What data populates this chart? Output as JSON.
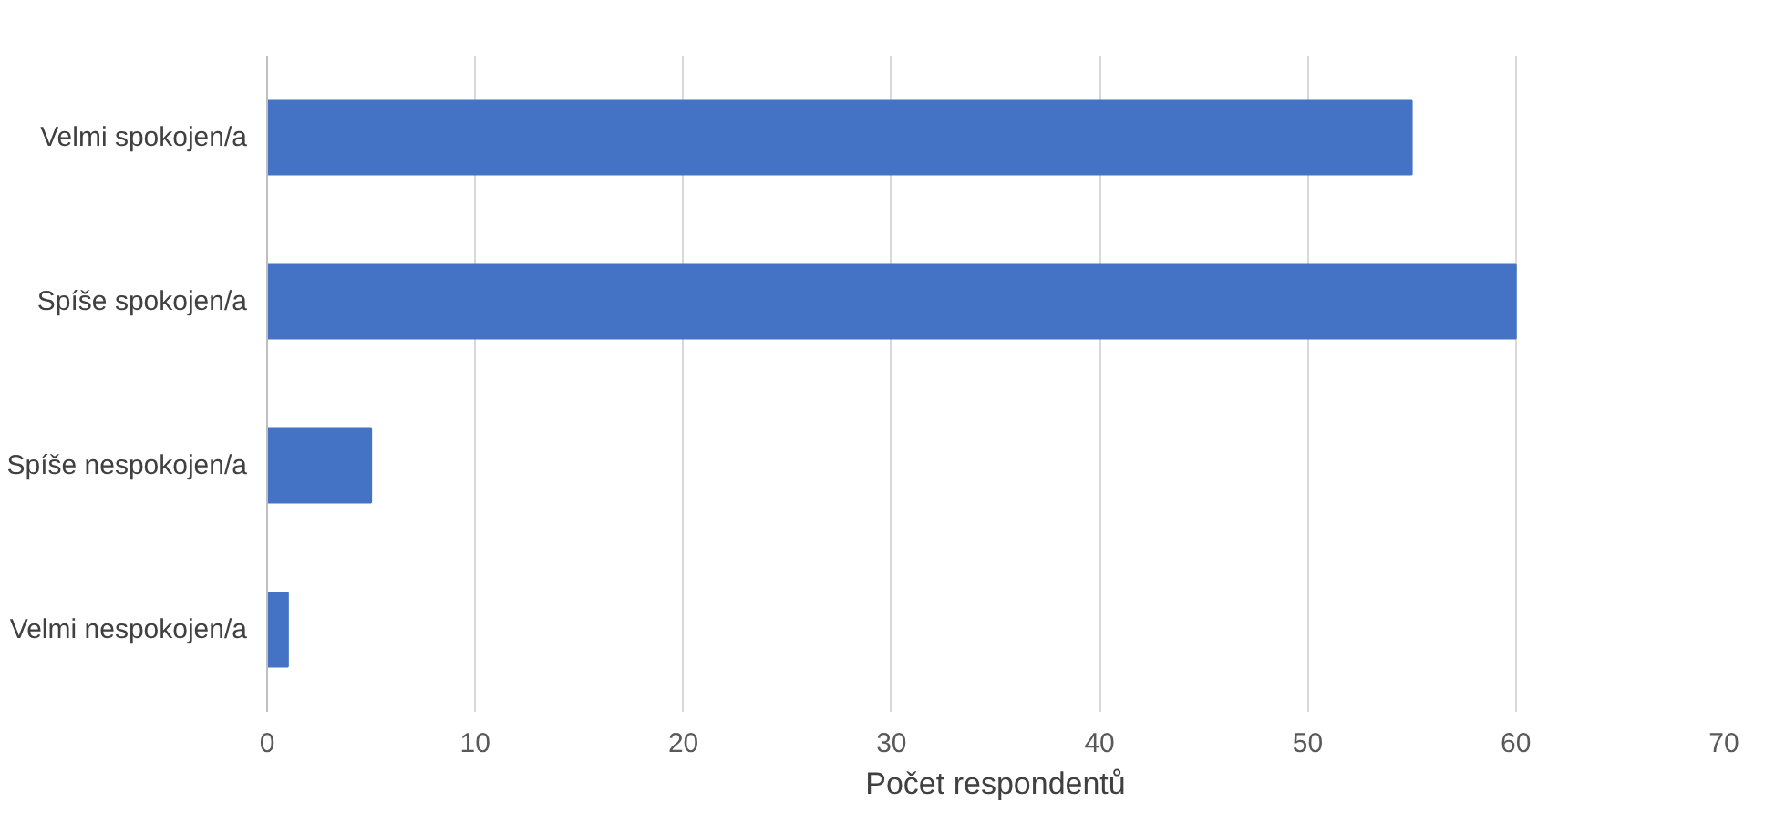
{
  "chart_data": {
    "type": "bar",
    "orientation": "horizontal",
    "categories": [
      "Velmi spokojen/a",
      "Spíše spokojen/a",
      "Spíše nespokojen/a",
      "Velmi nespokojen/a"
    ],
    "values": [
      55,
      60,
      5,
      1
    ],
    "color": "#4472c4",
    "xlim": [
      0,
      70
    ],
    "xticks": [
      0,
      10,
      20,
      30,
      40,
      50,
      60,
      70
    ],
    "xlabel": "Počet respondentů",
    "grid": "x"
  }
}
